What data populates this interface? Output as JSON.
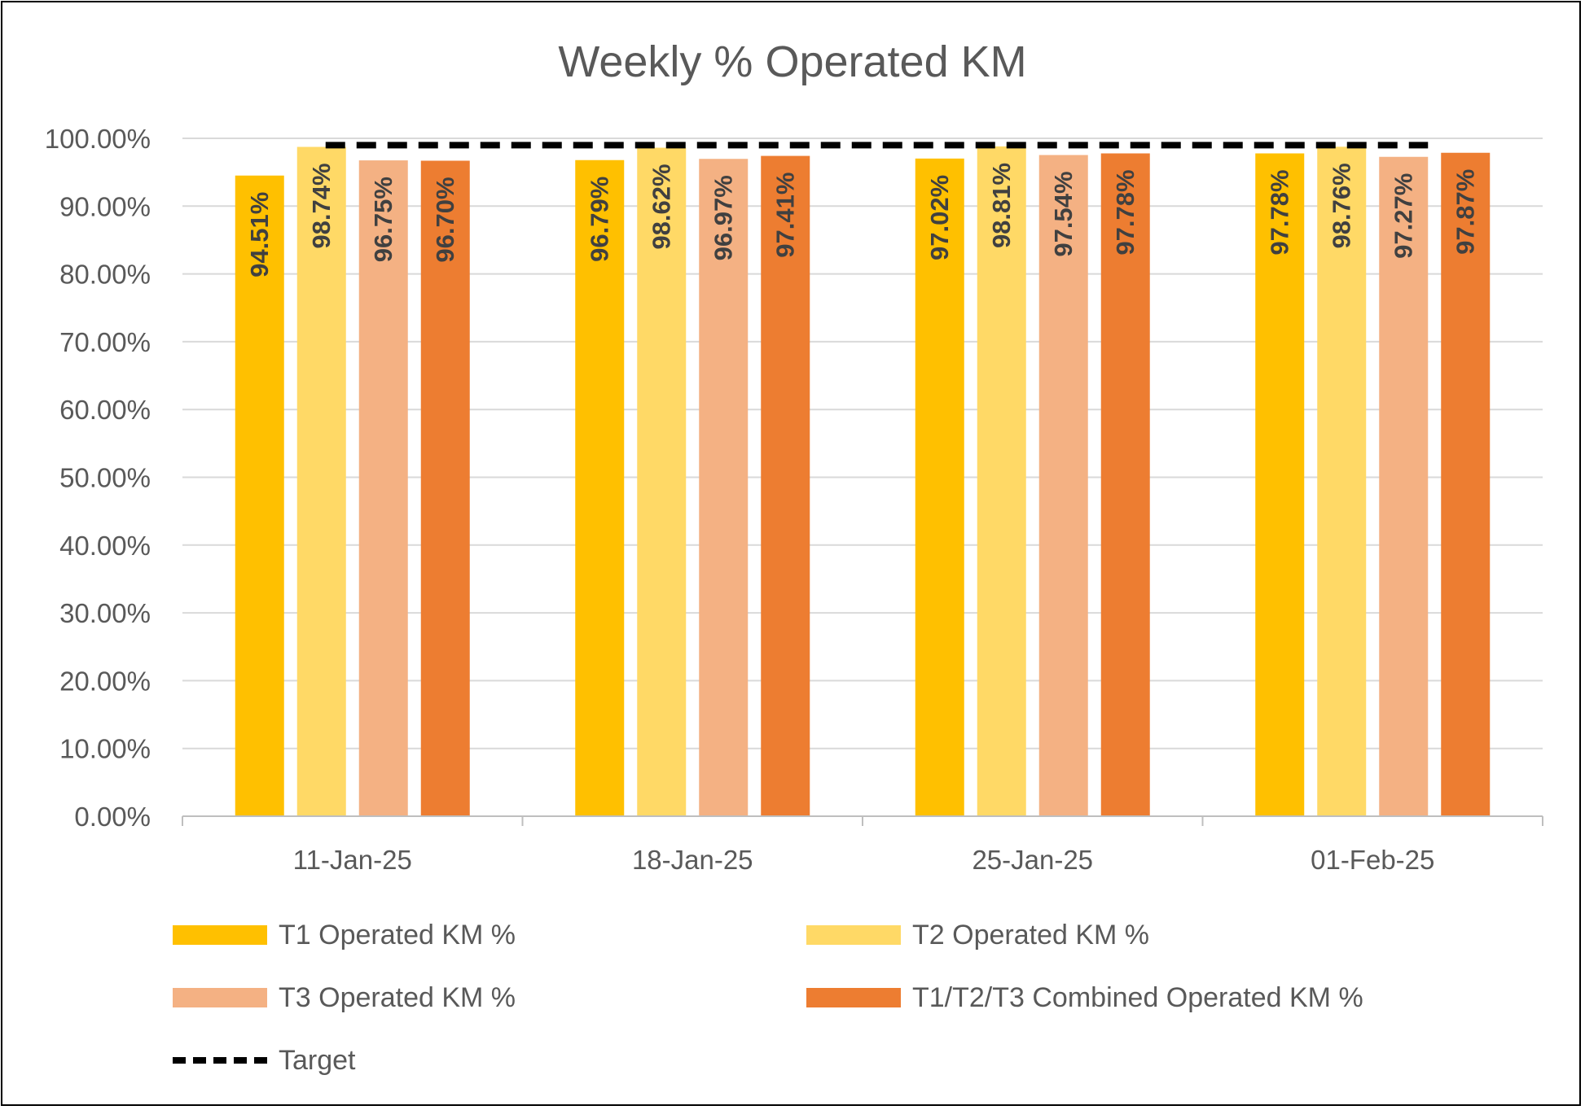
{
  "chart_data": {
    "type": "bar",
    "title": "Weekly % Operated KM",
    "categories": [
      "11-Jan-25",
      "18-Jan-25",
      "25-Jan-25",
      "01-Feb-25"
    ],
    "series": [
      {
        "name": "T1 Operated KM %",
        "color": "#FFC000",
        "values": [
          94.51,
          96.79,
          97.02,
          97.78
        ],
        "labels": [
          "94.51%",
          "96.79%",
          "97.02%",
          "97.78%"
        ]
      },
      {
        "name": "T2 Operated KM %",
        "color": "#FFD966",
        "values": [
          98.74,
          98.62,
          98.81,
          98.76
        ],
        "labels": [
          "98.74%",
          "98.62%",
          "98.81%",
          "98.76%"
        ]
      },
      {
        "name": "T3 Operated KM %",
        "color": "#F4B183",
        "values": [
          96.75,
          96.97,
          97.54,
          97.27
        ],
        "labels": [
          "96.75%",
          "96.97%",
          "97.54%",
          "97.27%"
        ]
      },
      {
        "name": "T1/T2/T3 Combined Operated KM %",
        "color": "#ED7D31",
        "values": [
          96.7,
          97.41,
          97.78,
          97.87
        ],
        "labels": [
          "96.70%",
          "97.41%",
          "97.78%",
          "97.87%"
        ]
      }
    ],
    "target": {
      "name": "Target",
      "value": 99,
      "style": "dashed",
      "color": "#000000"
    },
    "ylim": [
      0,
      100
    ],
    "yticks": [
      0,
      10,
      20,
      30,
      40,
      50,
      60,
      70,
      80,
      90,
      100
    ],
    "ytick_labels": [
      "0.00%",
      "10.00%",
      "20.00%",
      "30.00%",
      "40.00%",
      "50.00%",
      "60.00%",
      "70.00%",
      "80.00%",
      "90.00%",
      "100.00%"
    ],
    "grid": true,
    "legend_position": "bottom",
    "xlabel": "",
    "ylabel": ""
  }
}
